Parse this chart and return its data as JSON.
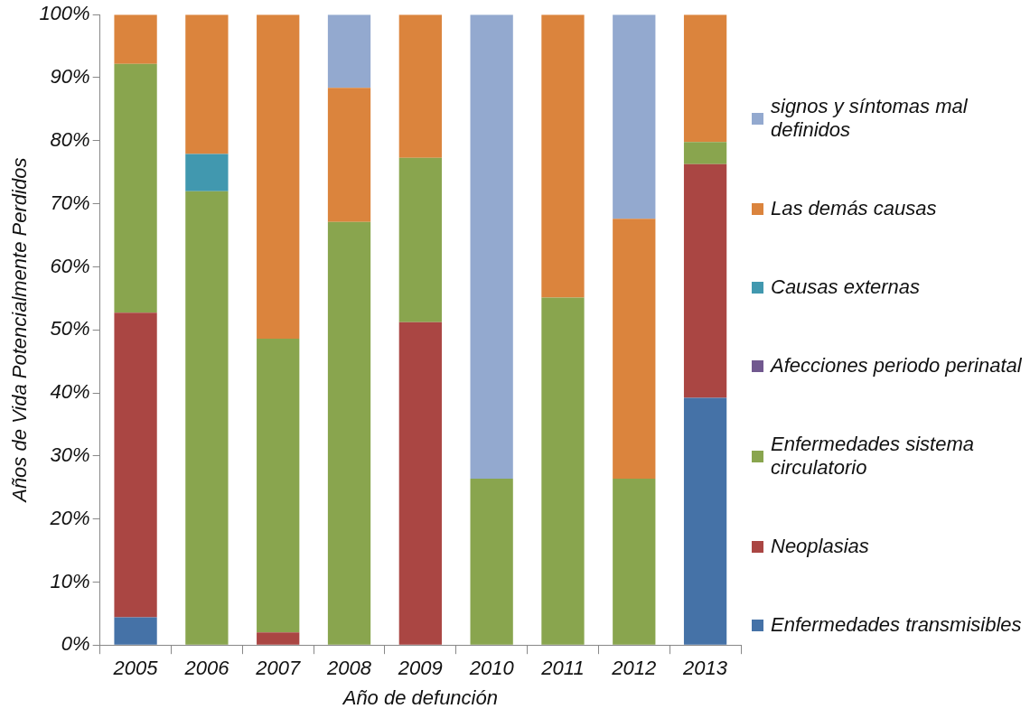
{
  "chart_data": {
    "type": "bar",
    "stacked": true,
    "xlabel": "Año de defunción",
    "ylabel": "Años de Vida Potencialmente Perdidos",
    "categories": [
      "2005",
      "2006",
      "2007",
      "2008",
      "2009",
      "2010",
      "2011",
      "2012",
      "2013"
    ],
    "ylim": [
      0,
      100
    ],
    "yticks": [
      {
        "value": 0,
        "label": "0%"
      },
      {
        "value": 10,
        "label": "10%"
      },
      {
        "value": 20,
        "label": "20%"
      },
      {
        "value": 30,
        "label": "30%"
      },
      {
        "value": 40,
        "label": "40%"
      },
      {
        "value": 50,
        "label": "50%"
      },
      {
        "value": 60,
        "label": "60%"
      },
      {
        "value": 70,
        "label": "70%"
      },
      {
        "value": 80,
        "label": "80%"
      },
      {
        "value": 90,
        "label": "90%"
      },
      {
        "value": 100,
        "label": "100%"
      }
    ],
    "grid": false,
    "legend": "right",
    "series": [
      {
        "name": "Enfermedades transmisibles",
        "color": "#4572a7",
        "values": [
          4.4,
          0,
          0,
          0,
          0,
          0,
          0,
          0,
          39.2
        ]
      },
      {
        "name": "Neoplasias",
        "color": "#aa4643",
        "values": [
          48.3,
          0,
          2.0,
          0,
          51.2,
          0,
          0,
          0,
          37.1
        ]
      },
      {
        "name": "Enfermedades sistema circulatorio",
        "color": "#89a54e",
        "values": [
          39.5,
          72.0,
          46.6,
          67.1,
          26.1,
          26.4,
          55.1,
          26.4,
          3.5
        ]
      },
      {
        "name": "Afecciones periodo perinatal",
        "color": "#71588f",
        "values": [
          0,
          0,
          0,
          0,
          0,
          0,
          0,
          0,
          0
        ]
      },
      {
        "name": "Causas externas",
        "color": "#4198af",
        "values": [
          0,
          5.9,
          0,
          0,
          0,
          0,
          0,
          0,
          0
        ]
      },
      {
        "name": "Las demás causas",
        "color": "#db843d",
        "values": [
          7.8,
          22.1,
          51.4,
          21.3,
          22.7,
          0,
          44.9,
          41.2,
          20.2
        ]
      },
      {
        "name": "signos y síntomas mal definidos",
        "color": "#93a9cf",
        "values": [
          0,
          0,
          0,
          11.6,
          0,
          73.6,
          0,
          32.4,
          0
        ]
      }
    ]
  }
}
